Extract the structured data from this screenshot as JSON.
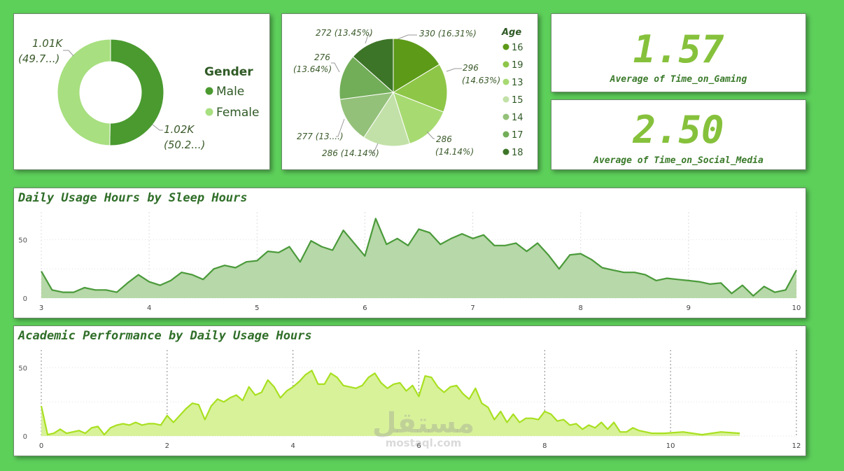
{
  "chart_data": [
    {
      "type": "pie",
      "variant": "donut",
      "legend_title": "Gender",
      "legend_position": "right",
      "slices": [
        {
          "label": "Male",
          "value": 1020,
          "display": "1.02K",
          "percent": "(50.2...)",
          "color": "#4a9a2f"
        },
        {
          "label": "Female",
          "value": 1010,
          "display": "1.01K",
          "percent": "(49.7...)",
          "color": "#a8df80"
        }
      ]
    },
    {
      "type": "pie",
      "legend_title": "Age",
      "legend_position": "right",
      "slices": [
        {
          "label": "16",
          "value": 330,
          "display": "330 (16.31%)",
          "color": "#5c9a18"
        },
        {
          "label": "19",
          "value": 296,
          "display": "296 (14.63%)",
          "color": "#8ec648"
        },
        {
          "label": "13",
          "value": 286,
          "display": "286 (14.14%)",
          "color": "#a8da72"
        },
        {
          "label": "15",
          "value": 286,
          "display": "286 (14.14%)",
          "color": "#c2e1a8"
        },
        {
          "label": "14",
          "value": 277,
          "display": "277 (13....)",
          "color": "#94c17a"
        },
        {
          "label": "17",
          "value": 276,
          "display": "276 (13.64%)",
          "color": "#72ad58"
        },
        {
          "label": "18",
          "value": 272,
          "display": "272 (13.45%)",
          "color": "#3d7528"
        }
      ]
    },
    {
      "type": "area",
      "title": "Daily Usage Hours by Sleep Hours",
      "xlabel": "",
      "ylabel": "",
      "xlim": [
        3,
        10
      ],
      "ylim": [
        0,
        70
      ],
      "x_ticks": [
        "3",
        "4",
        "5",
        "6",
        "7",
        "8",
        "9",
        "10"
      ],
      "y_ticks": [
        "0",
        "50"
      ],
      "color": "#4a9a3a",
      "fill": "#b7d8a8",
      "x": [
        3,
        3.1,
        3.2,
        3.3,
        3.4,
        3.5,
        3.6,
        3.7,
        3.8,
        3.9,
        4,
        4.1,
        4.2,
        4.3,
        4.4,
        4.5,
        4.6,
        4.7,
        4.8,
        4.9,
        5,
        5.1,
        5.2,
        5.3,
        5.4,
        5.5,
        5.6,
        5.7,
        5.8,
        5.9,
        6,
        6.1,
        6.2,
        6.3,
        6.4,
        6.5,
        6.6,
        6.7,
        6.8,
        6.9,
        7,
        7.1,
        7.2,
        7.3,
        7.4,
        7.5,
        7.6,
        7.7,
        7.8,
        7.9,
        8,
        8.1,
        8.2,
        8.3,
        8.4,
        8.5,
        8.6,
        8.7,
        8.8,
        8.9,
        9,
        9.1,
        9.2,
        9.3,
        9.4,
        9.5,
        9.6,
        9.7,
        9.8,
        9.9,
        10
      ],
      "y": [
        23,
        7,
        5,
        5,
        9,
        7,
        7,
        5,
        13,
        20,
        14,
        11,
        15,
        22,
        20,
        16,
        25,
        28,
        26,
        31,
        32,
        40,
        39,
        44,
        31,
        49,
        44,
        41,
        58,
        47,
        36,
        68,
        46,
        51,
        45,
        59,
        56,
        46,
        51,
        55,
        51,
        54,
        45,
        45,
        47,
        40,
        47,
        37,
        25,
        37,
        38,
        33,
        26,
        24,
        22,
        22,
        20,
        15,
        17,
        16,
        15,
        14,
        12,
        13,
        4,
        11,
        2,
        10,
        5,
        7,
        24
      ]
    },
    {
      "type": "area",
      "title": "Academic Performance by Daily Usage Hours",
      "xlabel": "",
      "ylabel": "",
      "xlim": [
        0,
        12
      ],
      "ylim": [
        0,
        60
      ],
      "x_ticks": [
        "0",
        "2",
        "4",
        "6",
        "8",
        "10",
        "12"
      ],
      "y_ticks": [
        "0",
        "50"
      ],
      "color": "#a8e020",
      "fill": "#d8f29a",
      "x": [
        0,
        0.1,
        0.2,
        0.3,
        0.4,
        0.5,
        0.6,
        0.7,
        0.8,
        0.9,
        1,
        1.1,
        1.2,
        1.3,
        1.4,
        1.5,
        1.6,
        1.7,
        1.8,
        1.9,
        2,
        2.1,
        2.2,
        2.3,
        2.4,
        2.5,
        2.6,
        2.7,
        2.8,
        2.9,
        3,
        3.1,
        3.2,
        3.3,
        3.4,
        3.5,
        3.6,
        3.7,
        3.8,
        3.9,
        4,
        4.1,
        4.2,
        4.3,
        4.4,
        4.5,
        4.6,
        4.7,
        4.8,
        4.9,
        5,
        5.1,
        5.2,
        5.3,
        5.4,
        5.5,
        5.6,
        5.7,
        5.8,
        5.9,
        6,
        6.1,
        6.2,
        6.3,
        6.4,
        6.5,
        6.6,
        6.7,
        6.8,
        6.9,
        7,
        7.1,
        7.2,
        7.3,
        7.4,
        7.5,
        7.6,
        7.7,
        7.8,
        7.9,
        8,
        8.1,
        8.2,
        8.3,
        8.4,
        8.5,
        8.6,
        8.7,
        8.8,
        8.9,
        9,
        9.1,
        9.2,
        9.3,
        9.4,
        9.5,
        9.7,
        9.9,
        10.2,
        10.5,
        10.8,
        11.1
      ],
      "y": [
        22,
        1,
        2,
        5,
        2,
        3,
        4,
        2,
        6,
        7,
        1,
        6,
        8,
        9,
        8,
        10,
        8,
        9,
        9,
        8,
        15,
        10,
        15,
        20,
        24,
        23,
        12,
        22,
        27,
        25,
        28,
        30,
        26,
        36,
        30,
        32,
        41,
        36,
        28,
        33,
        36,
        40,
        45,
        48,
        38,
        38,
        46,
        43,
        37,
        36,
        35,
        37,
        43,
        46,
        39,
        35,
        38,
        39,
        33,
        37,
        29,
        44,
        43,
        36,
        32,
        36,
        37,
        31,
        27,
        35,
        24,
        21,
        12,
        18,
        10,
        16,
        10,
        13,
        13,
        12,
        18,
        16,
        11,
        12,
        8,
        9,
        5,
        8,
        6,
        10,
        5,
        10,
        3,
        3,
        6,
        4,
        2,
        2,
        3,
        1,
        3,
        2
      ]
    }
  ],
  "kpis": [
    {
      "value": "1.57",
      "label": "Average of Time_on_Gaming"
    },
    {
      "value": "2.50",
      "label": "Average of Time_on_Social_Media"
    }
  ],
  "watermark": {
    "arabic": "مستقل",
    "latin": "mostaql.com"
  }
}
